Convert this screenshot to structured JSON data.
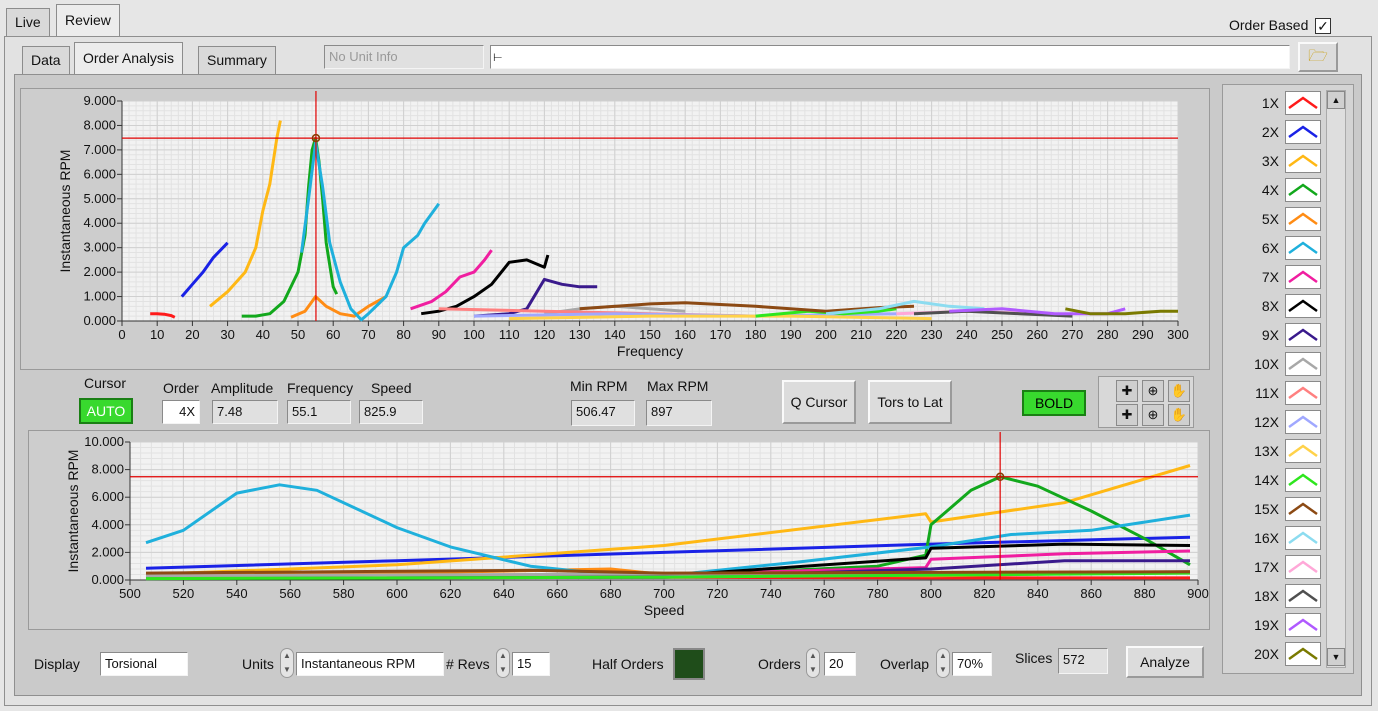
{
  "top_tabs": [
    "Live",
    "Review"
  ],
  "order_based_label": "Order Based",
  "sub_tabs": [
    "Data",
    "Order Analysis",
    "Summary"
  ],
  "unit_info": "No Unit Info",
  "path_value": "",
  "top_chart": {
    "ylabel": "Instantaneous RPM",
    "xlabel": "Frequency",
    "yticks": [
      "0.000",
      "1.000",
      "2.000",
      "3.000",
      "4.000",
      "5.000",
      "6.000",
      "7.000",
      "8.000",
      "9.000"
    ],
    "xticks": [
      "0",
      "10",
      "20",
      "30",
      "40",
      "50",
      "60",
      "70",
      "80",
      "90",
      "100",
      "110",
      "120",
      "130",
      "140",
      "150",
      "160",
      "170",
      "180",
      "190",
      "200",
      "210",
      "220",
      "230",
      "240",
      "250",
      "260",
      "270",
      "280",
      "290",
      "300"
    ]
  },
  "bottom_chart": {
    "ylabel": "Instantaneous RPM",
    "xlabel": "Speed",
    "yticks": [
      "0.000",
      "2.000",
      "4.000",
      "6.000",
      "8.000",
      "10.000"
    ],
    "xticks": [
      "500",
      "520",
      "540",
      "560",
      "580",
      "600",
      "620",
      "640",
      "660",
      "680",
      "700",
      "720",
      "740",
      "760",
      "780",
      "800",
      "820",
      "840",
      "860",
      "880",
      "900"
    ]
  },
  "chart_data": [
    {
      "type": "line",
      "xlabel": "Frequency",
      "ylabel": "Instantaneous RPM",
      "xlim": [
        0,
        300
      ],
      "ylim": [
        0,
        9
      ],
      "cursor": {
        "x": 55.1,
        "y": 7.48
      },
      "series": [
        {
          "name": "1X",
          "color": "#ff1a1a",
          "x": [
            8,
            10,
            12,
            14,
            15
          ],
          "y": [
            0.3,
            0.3,
            0.28,
            0.22,
            0.15
          ]
        },
        {
          "name": "2X",
          "color": "#1a22e6",
          "x": [
            17,
            20,
            23,
            26,
            28,
            30
          ],
          "y": [
            1.0,
            1.5,
            2.0,
            2.6,
            2.9,
            3.2
          ]
        },
        {
          "name": "3X",
          "color": "#ffb814",
          "x": [
            25,
            30,
            35,
            38,
            40,
            42,
            44,
            45
          ],
          "y": [
            0.6,
            1.2,
            2.0,
            3.0,
            4.5,
            5.6,
            7.5,
            8.2
          ]
        },
        {
          "name": "4X",
          "color": "#12a81c",
          "x": [
            34,
            38,
            42,
            46,
            50,
            52,
            53,
            54,
            55,
            56,
            57,
            58,
            60,
            61
          ],
          "y": [
            0.2,
            0.2,
            0.3,
            0.8,
            2.0,
            3.5,
            5.5,
            7.0,
            7.48,
            6.5,
            5.0,
            3.2,
            1.4,
            1.1
          ]
        },
        {
          "name": "5X",
          "color": "#ff8c14",
          "x": [
            48,
            52,
            55,
            58,
            62,
            66,
            70,
            75
          ],
          "y": [
            0.15,
            0.4,
            1.0,
            0.6,
            0.3,
            0.2,
            0.6,
            1.0
          ]
        },
        {
          "name": "6X",
          "color": "#1fb0dc",
          "x": [
            51,
            53,
            55,
            57,
            59,
            62,
            65,
            68,
            70,
            75,
            78,
            80,
            84,
            86,
            90
          ],
          "y": [
            2.8,
            5.0,
            7.3,
            5.5,
            3.2,
            1.6,
            0.5,
            0.05,
            0.3,
            1.0,
            2.0,
            3.0,
            3.5,
            4.0,
            4.8
          ]
        },
        {
          "name": "7X",
          "color": "#f01ea0",
          "x": [
            82,
            88,
            92,
            96,
            100,
            103,
            105
          ],
          "y": [
            0.5,
            0.8,
            1.2,
            1.8,
            2.0,
            2.5,
            2.9
          ]
        },
        {
          "name": "8X",
          "color": "#000000",
          "x": [
            85,
            90,
            95,
            100,
            105,
            110,
            115,
            120,
            121
          ],
          "y": [
            0.3,
            0.4,
            0.6,
            1.0,
            1.5,
            2.4,
            2.5,
            2.2,
            2.7
          ]
        },
        {
          "name": "9X",
          "color": "#3a1a8c",
          "x": [
            100,
            110,
            115,
            120,
            125,
            130,
            135
          ],
          "y": [
            0.2,
            0.3,
            0.5,
            1.7,
            1.5,
            1.4,
            1.4
          ]
        },
        {
          "name": "10X",
          "color": "#a8a8a8",
          "x": [
            120,
            130,
            140,
            150,
            160
          ],
          "y": [
            0.3,
            0.5,
            0.6,
            0.5,
            0.4
          ]
        },
        {
          "name": "11X",
          "color": "#ff8080",
          "x": [
            90,
            120,
            150,
            180
          ],
          "y": [
            0.5,
            0.4,
            0.3,
            0.2
          ]
        },
        {
          "name": "12X",
          "color": "#a0a8ff",
          "x": [
            100,
            140,
            180,
            220
          ],
          "y": [
            0.2,
            0.3,
            0.2,
            0.3
          ]
        },
        {
          "name": "13X",
          "color": "#ffd24a",
          "x": [
            110,
            150,
            190,
            230
          ],
          "y": [
            0.1,
            0.2,
            0.2,
            0.1
          ]
        },
        {
          "name": "14X",
          "color": "#2ee61e",
          "x": [
            180,
            195,
            205,
            215,
            220
          ],
          "y": [
            0.2,
            0.4,
            0.3,
            0.4,
            0.5
          ]
        },
        {
          "name": "15X",
          "color": "#8c4a14",
          "x": [
            130,
            150,
            160,
            180,
            200,
            215,
            225
          ],
          "y": [
            0.5,
            0.7,
            0.75,
            0.6,
            0.4,
            0.55,
            0.6
          ]
        },
        {
          "name": "16X",
          "color": "#8cdcf0",
          "x": [
            200,
            215,
            225,
            235,
            245
          ],
          "y": [
            0.3,
            0.5,
            0.8,
            0.6,
            0.5
          ]
        },
        {
          "name": "17X",
          "color": "#ffa8d8",
          "x": [
            220,
            240,
            260
          ],
          "y": [
            0.3,
            0.4,
            0.3
          ]
        },
        {
          "name": "18X",
          "color": "#505050",
          "x": [
            225,
            240,
            255,
            270
          ],
          "y": [
            0.3,
            0.4,
            0.3,
            0.2
          ]
        },
        {
          "name": "19X",
          "color": "#b05aff",
          "x": [
            235,
            250,
            265,
            280,
            285
          ],
          "y": [
            0.4,
            0.5,
            0.3,
            0.3,
            0.5
          ]
        },
        {
          "name": "20X",
          "color": "#7a7a00",
          "x": [
            268,
            275,
            285,
            295,
            300
          ],
          "y": [
            0.5,
            0.3,
            0.3,
            0.4,
            0.4
          ]
        }
      ]
    },
    {
      "type": "line",
      "xlabel": "Speed",
      "ylabel": "Instantaneous RPM",
      "xlim": [
        500,
        900
      ],
      "ylim": [
        0,
        10
      ],
      "cursor": {
        "x": 825.9,
        "y": 7.48
      },
      "series": [
        {
          "name": "1X",
          "color": "#ff1a1a",
          "x": [
            506,
            600,
            700,
            800,
            897
          ],
          "y": [
            0.3,
            0.2,
            0.2,
            0.15,
            0.15
          ]
        },
        {
          "name": "2X",
          "color": "#1a22e6",
          "x": [
            506,
            600,
            700,
            800,
            897
          ],
          "y": [
            0.85,
            1.4,
            2.0,
            2.6,
            3.1
          ]
        },
        {
          "name": "3X",
          "color": "#ffb814",
          "x": [
            506,
            600,
            700,
            798,
            800,
            850,
            897
          ],
          "y": [
            0.4,
            1.1,
            2.5,
            4.8,
            4.2,
            5.6,
            8.3
          ]
        },
        {
          "name": "4X",
          "color": "#12a81c",
          "x": [
            506,
            600,
            700,
            780,
            798,
            800,
            815,
            826,
            840,
            860,
            880,
            897
          ],
          "y": [
            0.1,
            0.2,
            0.3,
            1.0,
            1.8,
            4.0,
            6.5,
            7.48,
            6.8,
            5.0,
            3.0,
            1.1
          ]
        },
        {
          "name": "5X",
          "color": "#ff8c14",
          "x": [
            506,
            600,
            680,
            700,
            800,
            897
          ],
          "y": [
            0.3,
            0.5,
            0.8,
            0.4,
            0.3,
            0.6
          ]
        },
        {
          "name": "6X",
          "color": "#1fb0dc",
          "x": [
            506,
            520,
            540,
            556,
            570,
            600,
            620,
            650,
            680,
            700,
            750,
            800,
            830,
            860,
            897
          ],
          "y": [
            2.7,
            3.6,
            6.3,
            6.9,
            6.5,
            3.8,
            2.4,
            1.0,
            0.4,
            0.3,
            1.3,
            2.4,
            3.3,
            3.6,
            4.7
          ]
        },
        {
          "name": "7X",
          "color": "#f01ea0",
          "x": [
            506,
            700,
            798,
            800,
            850,
            897
          ],
          "y": [
            0.3,
            0.4,
            0.9,
            1.5,
            1.9,
            2.1
          ]
        },
        {
          "name": "8X",
          "color": "#000000",
          "x": [
            506,
            700,
            798,
            800,
            850,
            897
          ],
          "y": [
            0.2,
            0.3,
            1.6,
            2.3,
            2.6,
            2.5
          ]
        },
        {
          "name": "9X",
          "color": "#3a1a8c",
          "x": [
            506,
            700,
            800,
            850,
            897
          ],
          "y": [
            0.15,
            0.2,
            0.8,
            1.4,
            1.4
          ]
        },
        {
          "name": "10X",
          "color": "#a8a8a8",
          "x": [
            506,
            800,
            897
          ],
          "y": [
            0.3,
            0.5,
            0.6
          ]
        },
        {
          "name": "14X",
          "color": "#2ee61e",
          "x": [
            506,
            700,
            897
          ],
          "y": [
            0.1,
            0.2,
            0.5
          ]
        },
        {
          "name": "15X",
          "color": "#8c4a14",
          "x": [
            506,
            650,
            700,
            897
          ],
          "y": [
            0.5,
            0.7,
            0.5,
            0.6
          ]
        }
      ]
    }
  ],
  "cursor_panel": {
    "cursor_label": "Cursor",
    "auto_label": "AUTO",
    "order_label": "Order",
    "order_value": "4X",
    "amplitude_label": "Amplitude",
    "amplitude_value": "7.48",
    "frequency_label": "Frequency",
    "frequency_value": "55.1",
    "speed_label": "Speed",
    "speed_value": "825.9",
    "min_rpm_label": "Min RPM",
    "min_rpm_value": "506.47",
    "max_rpm_label": "Max RPM",
    "max_rpm_value": "897",
    "q_cursor_label": "Q Cursor",
    "tors_to_lat_label": "Tors to Lat",
    "bold_label": "BOLD"
  },
  "legend": [
    "1X",
    "2X",
    "3X",
    "4X",
    "5X",
    "6X",
    "7X",
    "8X",
    "9X",
    "10X",
    "11X",
    "12X",
    "13X",
    "14X",
    "15X",
    "16X",
    "17X",
    "18X",
    "19X",
    "20X"
  ],
  "legend_colors": [
    "#ff1a1a",
    "#1a22e6",
    "#ffb814",
    "#12a81c",
    "#ff8c14",
    "#1fb0dc",
    "#f01ea0",
    "#000000",
    "#3a1a8c",
    "#a8a8a8",
    "#ff8080",
    "#a0a8ff",
    "#ffd24a",
    "#2ee61e",
    "#8c4a14",
    "#8cdcf0",
    "#ffa8d8",
    "#505050",
    "#b05aff",
    "#7a7a00"
  ],
  "bottom_bar": {
    "display_label": "Display",
    "display_value": "Torsional",
    "units_label": "Units",
    "units_value": "Instantaneous RPM",
    "revs_label": "# Revs",
    "revs_value": "15",
    "half_orders_label": "Half Orders",
    "orders_label": "Orders",
    "orders_value": "20",
    "overlap_label": "Overlap",
    "overlap_value": "70%",
    "slices_label": "Slices",
    "slices_value": "572",
    "analyze_label": "Analyze"
  }
}
